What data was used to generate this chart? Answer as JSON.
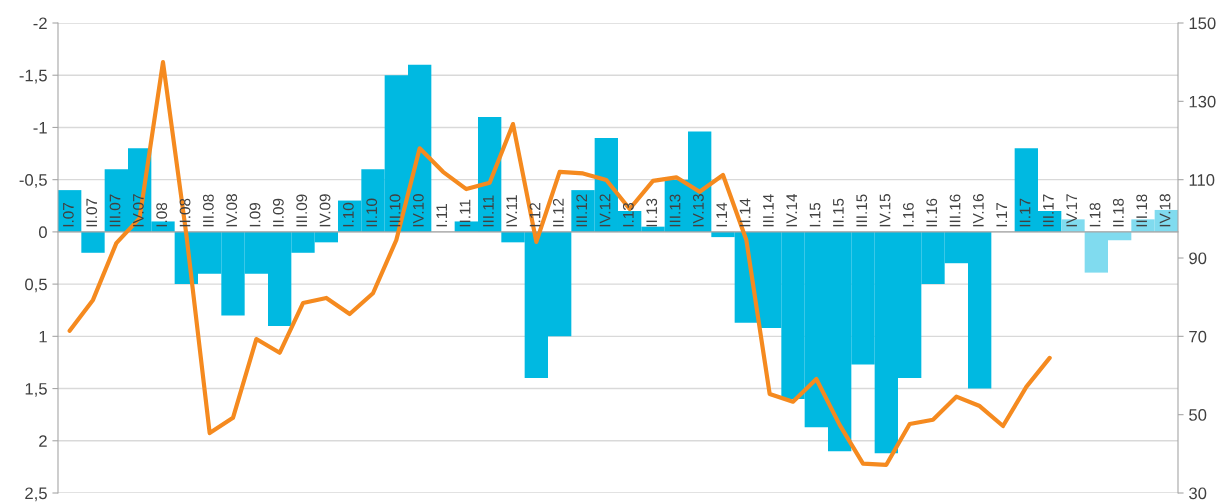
{
  "chart_data": {
    "type": "bar",
    "categories": [
      "I.07",
      "II.07",
      "III.07",
      "IV.07",
      "I.08",
      "II.08",
      "III.08",
      "IV.08",
      "I.09",
      "II.09",
      "III.09",
      "IV.09",
      "I.10",
      "II.10",
      "III.10",
      "IV.10",
      "I.11",
      "II.11",
      "III.11",
      "IV.11",
      "I.12",
      "II.12",
      "III.12",
      "IV.12",
      "I.13",
      "II.13",
      "III.13",
      "IV.13",
      "I.14",
      "II.14",
      "III.14",
      "IV.14",
      "I.15",
      "II.15",
      "III.15",
      "IV.15",
      "I.16",
      "II.16",
      "III.16",
      "IV.16",
      "I.17",
      "II.17",
      "III.17",
      "IV.17",
      "I.18",
      "II.18",
      "III.18",
      "IV.18"
    ],
    "series": [
      {
        "type": "bar",
        "colors": [
          "#00b9e1",
          "#00b9e1",
          "#00b9e1",
          "#00b9e1",
          "#00b9e1",
          "#00b9e1",
          "#00b9e1",
          "#00b9e1",
          "#00b9e1",
          "#00b9e1",
          "#00b9e1",
          "#00b9e1",
          "#00b9e1",
          "#00b9e1",
          "#00b9e1",
          "#00b9e1",
          "#00b9e1",
          "#00b9e1",
          "#00b9e1",
          "#00b9e1",
          "#00b9e1",
          "#00b9e1",
          "#00b9e1",
          "#00b9e1",
          "#00b9e1",
          "#00b9e1",
          "#00b9e1",
          "#00b9e1",
          "#00b9e1",
          "#00b9e1",
          "#00b9e1",
          "#00b9e1",
          "#00b9e1",
          "#00b9e1",
          "#00b9e1",
          "#00b9e1",
          "#00b9e1",
          "#00b9e1",
          "#00b9e1",
          "#00b9e1",
          "#00b9e1",
          "#00b9e1",
          "#00b9e1",
          "#80dbef",
          "#80dbef",
          "#80dbef",
          "#80dbef",
          "#80dbef"
        ],
        "values": [
          -0.4,
          0.2,
          -0.6,
          -0.8,
          -0.1,
          0.5,
          0.4,
          0.8,
          0.4,
          0.9,
          0.2,
          0.1,
          -0.3,
          -0.6,
          -1.5,
          -1.6,
          0,
          -0.1,
          -1.1,
          0.1,
          1.4,
          1.0,
          -0.4,
          -0.9,
          -0.2,
          -0.05,
          -0.5,
          -0.96,
          0.05,
          0.87,
          0.92,
          1.6,
          1.87,
          2.1,
          1.27,
          2.12,
          1.4,
          0.5,
          0.3,
          1.5,
          0,
          -0.8,
          -0.2,
          -0.12,
          0.39,
          0.08,
          -0.12,
          -0.21
        ]
      },
      {
        "type": "line",
        "axis": "y2",
        "color": "#f58a1f",
        "values": [
          71.4,
          79.3,
          93.8,
          100.2,
          140,
          96,
          45.3,
          49.2,
          69.3,
          65.8,
          78.5,
          79.8,
          75.7,
          81,
          94.6,
          118,
          112,
          107.6,
          109.2,
          124.2,
          94.1,
          112,
          111.6,
          109.9,
          102.5,
          109.7,
          110.6,
          106.9,
          111.2,
          94.6,
          55.3,
          53.3,
          59.1,
          47.4,
          37.5,
          37.2,
          47.6,
          48.7,
          54.6,
          52.2,
          47.1,
          57.1,
          64.5,
          null,
          null,
          null,
          null,
          null
        ]
      }
    ],
    "ylim": [
      2.5,
      -2
    ],
    "yticks": [
      {
        "value": -2,
        "label": "-2"
      },
      {
        "value": -1.5,
        "label": "-1,5"
      },
      {
        "value": -1,
        "label": "-1"
      },
      {
        "value": -0.5,
        "label": "-0,5"
      },
      0,
      {
        "value": 0.5,
        "label": "0,5"
      },
      1,
      {
        "value": 1.5,
        "label": "1,5"
      },
      2,
      {
        "value": 2.5,
        "label": "2,5"
      }
    ],
    "y2lim": [
      30,
      150
    ],
    "y2ticks": [
      30,
      50,
      70,
      90,
      110,
      130,
      150
    ],
    "grid": "y"
  }
}
